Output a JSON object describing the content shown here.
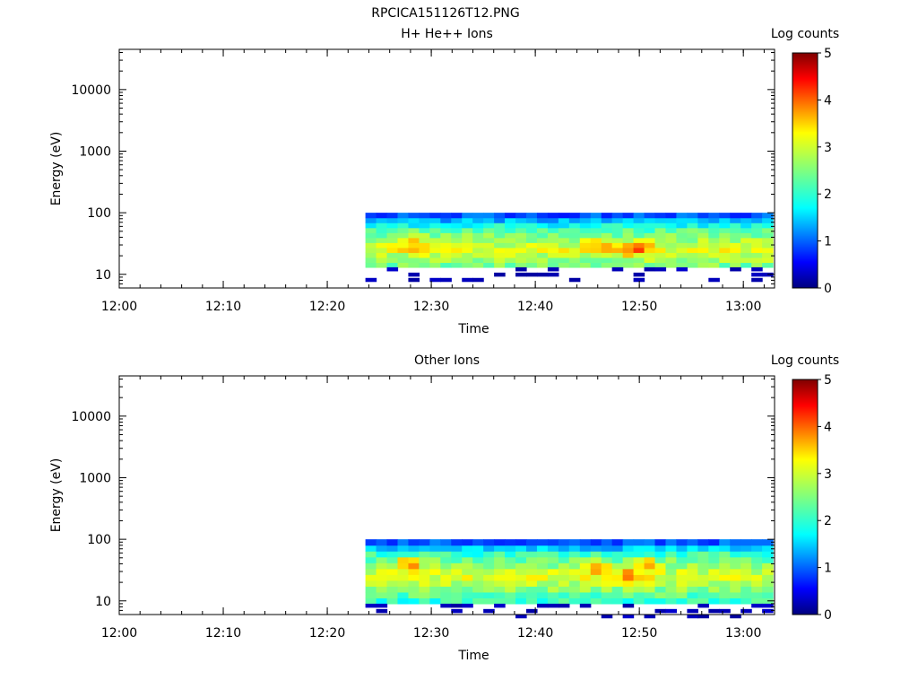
{
  "figure_title": "RPCICA151126T12.PNG",
  "chart_data": [
    {
      "type": "heatmap",
      "title": "H+ He++ Ions",
      "xlabel": "Time",
      "ylabel": "Energy (eV)",
      "y_scale": "log",
      "xlim": [
        "12:00",
        "13:03"
      ],
      "ylim": [
        6,
        45000
      ],
      "x_ticks": [
        "12:00",
        "12:10",
        "12:20",
        "12:30",
        "12:40",
        "12:50",
        "13:00"
      ],
      "y_ticks": [
        "10",
        "100",
        "1000",
        "10000"
      ],
      "colorbar": {
        "label": "Log counts",
        "ticks": [
          "0",
          "1",
          "2",
          "3",
          "4",
          "5"
        ],
        "range": [
          0,
          5
        ]
      },
      "data_window": {
        "t_start": "12:23:40",
        "t_end": "13:02:50",
        "e_min": 13,
        "e_max": 100
      },
      "low_energy_sparse": "dark-blue isolated patches 6–11 eV",
      "peaks": [
        {
          "time": "12:28",
          "energy": 35,
          "log_counts": 4.0
        },
        {
          "time": "12:46",
          "energy": 30,
          "log_counts": 3.7
        },
        {
          "time": "12:49",
          "energy": 25,
          "log_counts": 3.8
        },
        {
          "time": "12:50:30",
          "energy": 28,
          "log_counts": 3.7
        }
      ]
    },
    {
      "type": "heatmap",
      "title": "Other Ions",
      "xlabel": "Time",
      "ylabel": "Energy (eV)",
      "y_scale": "log",
      "xlim": [
        "12:00",
        "13:03"
      ],
      "ylim": [
        6,
        45000
      ],
      "x_ticks": [
        "12:00",
        "12:10",
        "12:20",
        "12:30",
        "12:40",
        "12:50",
        "13:00"
      ],
      "y_ticks": [
        "10",
        "100",
        "1000",
        "10000"
      ],
      "colorbar": {
        "label": "Log counts",
        "ticks": [
          "0",
          "1",
          "2",
          "3",
          "4",
          "5"
        ],
        "range": [
          0,
          5
        ]
      },
      "data_window": {
        "t_start": "12:23:40",
        "t_end": "13:02:50",
        "e_min": 9,
        "e_max": 100
      },
      "low_energy_sparse": "dark-blue isolated patches 6–9 eV",
      "peaks": [
        {
          "time": "12:28",
          "energy": 40,
          "log_counts": 4.4
        },
        {
          "time": "12:46",
          "energy": 35,
          "log_counts": 4.0
        },
        {
          "time": "12:49",
          "energy": 25,
          "log_counts": 4.0
        },
        {
          "time": "12:50:30",
          "energy": 40,
          "log_counts": 4.0
        }
      ]
    }
  ]
}
